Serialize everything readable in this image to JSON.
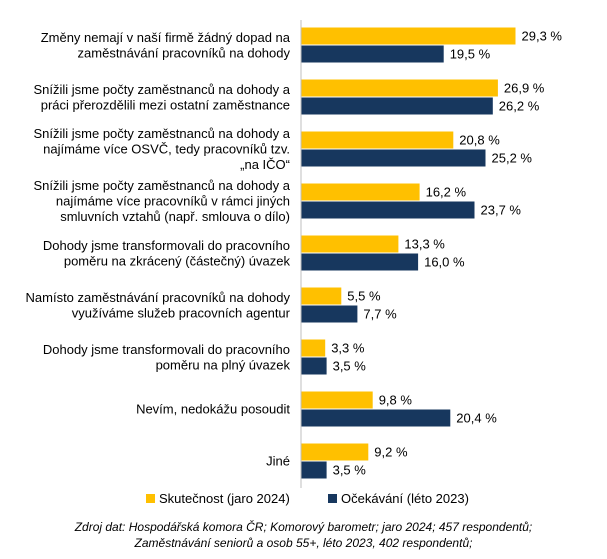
{
  "chart_data": {
    "type": "bar",
    "orientation": "horizontal",
    "categories": [
      [
        "Změny nemají v naší firmě žádný dopad na",
        "zaměstnávání pracovníků na dohody"
      ],
      [
        "Snížili jsme počty zaměstnanců na dohody a",
        "práci přerozdělili mezi ostatní zaměstnance"
      ],
      [
        "Snížili jsme počty zaměstnanců na dohody a",
        "najímáme více OSVČ, tedy pracovníků tzv.",
        "„na IČO“"
      ],
      [
        "Snížili jsme počty zaměstnanců na dohody a",
        "najímáme více pracovníků v rámci jiných",
        "smluvních vztahů (např. smlouva o dílo)"
      ],
      [
        "Dohody jsme transformovali do pracovního",
        "poměru na zkrácený (částečný) úvazek"
      ],
      [
        "Namísto zaměstnávání pracovníků na dohody",
        "využíváme služeb pracovních agentur"
      ],
      [
        "Dohody jsme transformovali do pracovního",
        "poměru na plný úvazek"
      ],
      [
        "Nevím, nedokážu posoudit"
      ],
      [
        "Jiné"
      ]
    ],
    "series": [
      {
        "name": "Skutečnost (jaro 2024)",
        "color": "#FFC000",
        "values": [
          29.3,
          26.9,
          20.8,
          16.2,
          13.3,
          5.5,
          3.3,
          9.8,
          9.2
        ],
        "labels": [
          "29,3 %",
          "26,9 %",
          "20,8 %",
          "16,2 %",
          "13,3 %",
          "5,5 %",
          "3,3 %",
          "9,8 %",
          "9,2 %"
        ]
      },
      {
        "name": "Očekávání (léto 2023)",
        "color": "#17375E",
        "values": [
          19.5,
          26.2,
          25.2,
          23.7,
          16.0,
          7.7,
          3.5,
          20.4,
          3.5
        ],
        "labels": [
          "19,5 %",
          "26,2 %",
          "25,2 %",
          "23,7 %",
          "16,0 %",
          "7,7 %",
          "3,5 %",
          "20,4 %",
          "3,5 %"
        ]
      }
    ],
    "legend_position": "bottom",
    "grid": false
  },
  "footnote": {
    "line1": "Zdroj dat: Hospodářská komora ČR; Komorový barometr; jaro 2024; 457 respondentů;",
    "line2": "Zaměstnávání seniorů a osob 55+, léto 2023, 402 respondentů;"
  }
}
